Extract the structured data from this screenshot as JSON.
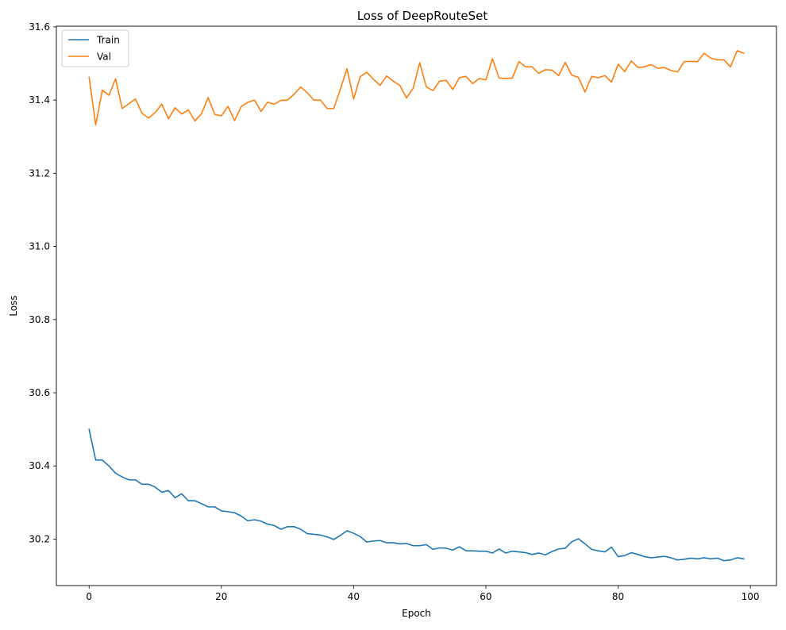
{
  "chart_data": {
    "type": "line",
    "title": "Loss of DeepRouteSet",
    "xlabel": "Epoch",
    "ylabel": "Loss",
    "xlim": [
      -4.95,
      103.95
    ],
    "ylim": [
      30.073,
      31.602
    ],
    "xticks": [
      0,
      20,
      40,
      60,
      80,
      100
    ],
    "yticks": [
      30.2,
      30.4,
      30.6,
      30.8,
      31.0,
      31.2,
      31.4,
      31.6
    ],
    "xtick_labels": [
      "0",
      "20",
      "40",
      "60",
      "80",
      "100"
    ],
    "ytick_labels": [
      "30.2",
      "30.4",
      "30.6",
      "30.8",
      "31.0",
      "31.2",
      "31.4",
      "31.6"
    ],
    "grid": false,
    "legend_position": "upper-left",
    "series": [
      {
        "name": "Train",
        "color": "#1f77b4",
        "values": [
          30.5,
          30.416,
          30.416,
          30.4,
          30.38,
          30.37,
          30.362,
          30.362,
          30.35,
          30.35,
          30.342,
          30.328,
          30.333,
          30.313,
          30.324,
          30.305,
          30.305,
          30.297,
          30.288,
          30.288,
          30.277,
          30.275,
          30.272,
          30.263,
          30.25,
          30.253,
          30.249,
          30.241,
          30.237,
          30.227,
          30.234,
          30.234,
          30.227,
          30.215,
          30.213,
          30.211,
          30.206,
          30.199,
          30.21,
          30.223,
          30.216,
          30.207,
          30.192,
          30.195,
          30.196,
          30.19,
          30.19,
          30.187,
          30.188,
          30.182,
          30.182,
          30.185,
          30.172,
          30.176,
          30.175,
          30.17,
          30.179,
          30.168,
          30.168,
          30.167,
          30.167,
          30.162,
          30.173,
          30.162,
          30.167,
          30.165,
          30.163,
          30.158,
          30.162,
          30.157,
          30.166,
          30.173,
          30.175,
          30.193,
          30.201,
          30.187,
          30.172,
          30.168,
          30.165,
          30.178,
          30.152,
          30.155,
          30.163,
          30.158,
          30.152,
          30.149,
          30.151,
          30.153,
          30.149,
          30.143,
          30.145,
          30.148,
          30.146,
          30.149,
          30.146,
          30.148,
          30.141,
          30.143,
          30.149,
          30.146
        ]
      },
      {
        "name": "Val",
        "color": "#ff7f0e",
        "values": [
          31.462,
          31.332,
          31.427,
          31.413,
          31.458,
          31.377,
          31.39,
          31.403,
          31.364,
          31.351,
          31.366,
          31.389,
          31.349,
          31.379,
          31.362,
          31.373,
          31.343,
          31.363,
          31.407,
          31.361,
          31.357,
          31.383,
          31.344,
          31.382,
          31.394,
          31.4,
          31.369,
          31.394,
          31.389,
          31.399,
          31.4,
          31.416,
          31.436,
          31.42,
          31.4,
          31.4,
          31.377,
          31.377,
          31.43,
          31.486,
          31.403,
          31.464,
          31.476,
          31.457,
          31.44,
          31.466,
          31.452,
          31.44,
          31.406,
          31.432,
          31.502,
          31.436,
          31.426,
          31.452,
          31.454,
          31.429,
          31.461,
          31.465,
          31.445,
          31.459,
          31.455,
          31.513,
          31.46,
          31.459,
          31.46,
          31.505,
          31.491,
          31.491,
          31.473,
          31.483,
          31.482,
          31.467,
          31.503,
          31.468,
          31.462,
          31.422,
          31.465,
          31.461,
          31.467,
          31.449,
          31.498,
          31.478,
          31.507,
          31.489,
          31.491,
          31.497,
          31.487,
          31.489,
          31.481,
          31.477,
          31.505,
          31.506,
          31.505,
          31.528,
          31.515,
          31.51,
          31.51,
          31.491,
          31.535,
          31.528
        ]
      }
    ]
  }
}
